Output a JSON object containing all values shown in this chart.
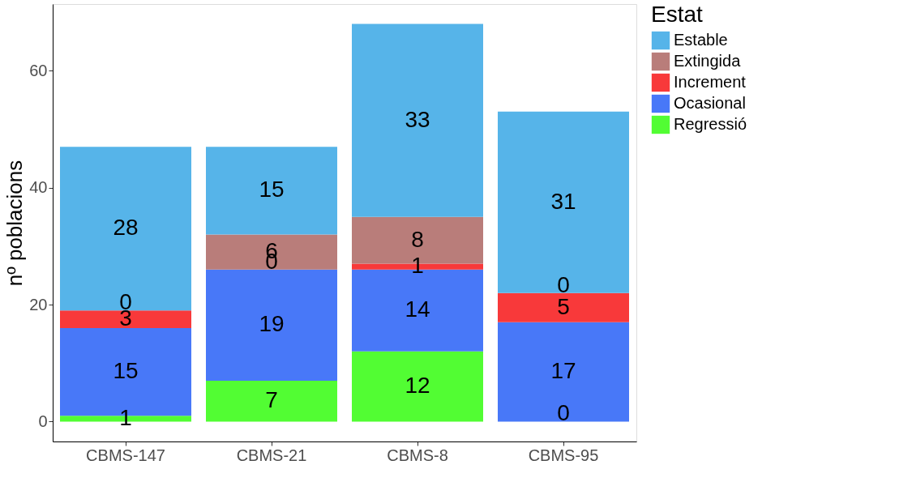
{
  "chart_data": {
    "type": "bar",
    "stacked": true,
    "ylabel": "nº poblacions",
    "legend_title": "Estat",
    "legend": "right",
    "grid": false,
    "categories": [
      "CBMS-147",
      "CBMS-21",
      "CBMS-8",
      "CBMS-95"
    ],
    "ylim": [
      -3.4,
      71.4
    ],
    "yticks": [
      0,
      20,
      40,
      60
    ],
    "series": [
      {
        "name": "Regressió",
        "color": "#52fd33",
        "values": [
          1,
          7,
          12,
          0
        ],
        "value_labels": [
          "1",
          "7",
          "12",
          null
        ]
      },
      {
        "name": "Ocasional",
        "color": "#4878f8",
        "values": [
          15,
          19,
          14,
          17
        ],
        "value_labels": [
          "15",
          "19",
          "14",
          "17"
        ]
      },
      {
        "name": "Increment",
        "color": "#f8393a",
        "values": [
          3,
          0,
          1,
          5
        ],
        "value_labels": [
          "3",
          null,
          "1",
          "5"
        ]
      },
      {
        "name": "Extingida",
        "color": "#b97d7a",
        "values": [
          0,
          6,
          8,
          0
        ],
        "value_labels": [
          null,
          "6",
          "8",
          null
        ]
      },
      {
        "name": "Estable",
        "color": "#56b4e9",
        "values": [
          28,
          15,
          33,
          31
        ],
        "value_labels": [
          "28",
          "15",
          "33",
          "31"
        ]
      }
    ],
    "annotations": [
      {
        "text": "0",
        "x": "CBMS-147",
        "y": 19
      },
      {
        "text": "0",
        "x": "CBMS-21",
        "y": 26
      },
      {
        "text": "0",
        "x": "CBMS-95",
        "y": 22
      },
      {
        "text": "0",
        "x": "CBMS-95",
        "y": 0
      }
    ]
  }
}
